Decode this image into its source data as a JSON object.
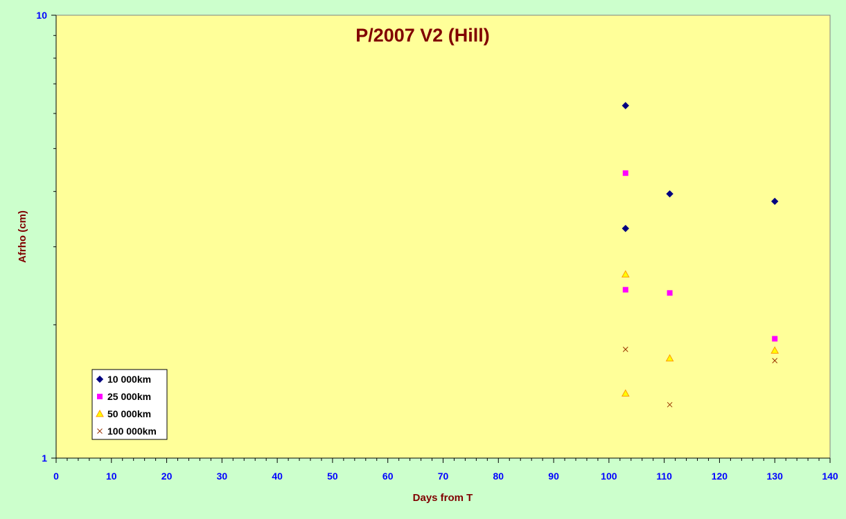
{
  "colors": {
    "outer_background": "#ccffcc",
    "plot_background": "#ffff99",
    "title": "#800000",
    "axis_label": "#800000",
    "tick_label": "#0000ff",
    "series_10000": "#000080",
    "series_25000": "#ff00ff",
    "series_50000": "#ff9900",
    "series_100000": "#993300"
  },
  "chart_data": {
    "type": "scatter",
    "title": "P/2007 V2 (Hill)",
    "xlabel": "Days from T",
    "ylabel": "Afrho (cm)",
    "xlim": [
      0,
      140
    ],
    "ylim": [
      1,
      10
    ],
    "yscale": "log",
    "x_ticks": [
      0,
      10,
      20,
      30,
      40,
      50,
      60,
      70,
      80,
      90,
      100,
      110,
      120,
      130,
      140
    ],
    "y_tick_labels": [
      "1",
      "10"
    ],
    "grid": false,
    "legend_position": "bottom-left",
    "series": [
      {
        "name": "10 000km",
        "marker": "diamond",
        "points": [
          [
            103,
            6.25
          ],
          [
            103,
            3.3
          ],
          [
            111,
            3.95
          ],
          [
            130,
            3.8
          ]
        ]
      },
      {
        "name": "25 000km",
        "marker": "square",
        "points": [
          [
            103,
            4.4
          ],
          [
            103,
            2.4
          ],
          [
            111,
            2.36
          ],
          [
            130,
            1.86
          ]
        ]
      },
      {
        "name": "50 000km",
        "marker": "triangle",
        "points": [
          [
            103,
            2.6
          ],
          [
            103,
            1.4
          ],
          [
            111,
            1.68
          ],
          [
            130,
            1.75
          ]
        ]
      },
      {
        "name": "100 000km",
        "marker": "x",
        "points": [
          [
            103,
            1.76
          ],
          [
            111,
            1.32
          ],
          [
            130,
            1.66
          ]
        ]
      }
    ]
  }
}
